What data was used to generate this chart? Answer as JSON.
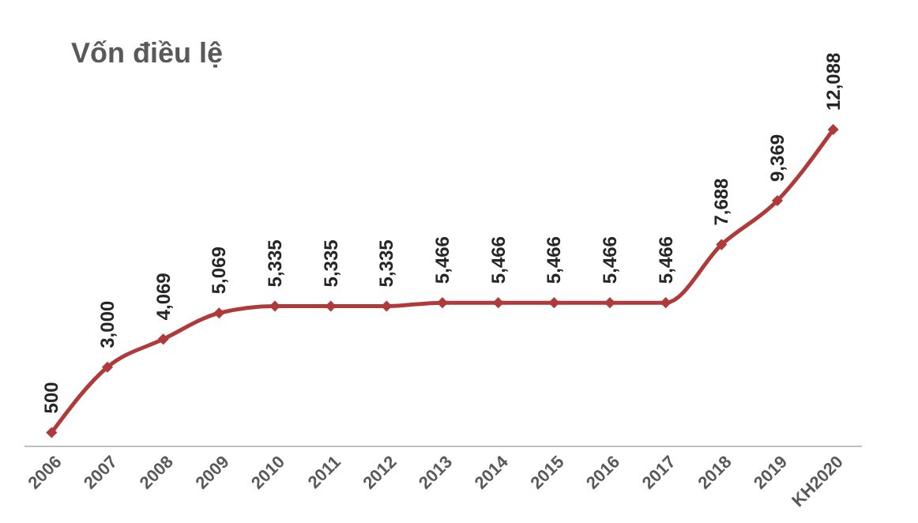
{
  "chart_data": {
    "type": "line",
    "title": "Vốn điều lệ",
    "categories": [
      "2006",
      "2007",
      "2008",
      "2009",
      "2010",
      "2011",
      "2012",
      "2013",
      "2014",
      "2015",
      "2016",
      "2017",
      "2018",
      "2019",
      "KH2020"
    ],
    "series": [
      {
        "color": "#b03a3a",
        "values": [
          500,
          3000,
          4069,
          5069,
          5335,
          5335,
          5335,
          5466,
          5466,
          5466,
          5466,
          5466,
          7688,
          9369,
          12088
        ],
        "value_labels": [
          "500",
          "3,000",
          "4,069",
          "5,069",
          "5,335",
          "5,335",
          "5,335",
          "5,466",
          "5,466",
          "5,466",
          "5,466",
          "5,466",
          "7,688",
          "9,369",
          "12,088"
        ]
      }
    ],
    "marker": "diamond",
    "line_style": "solid",
    "grid": false,
    "legend": false
  }
}
